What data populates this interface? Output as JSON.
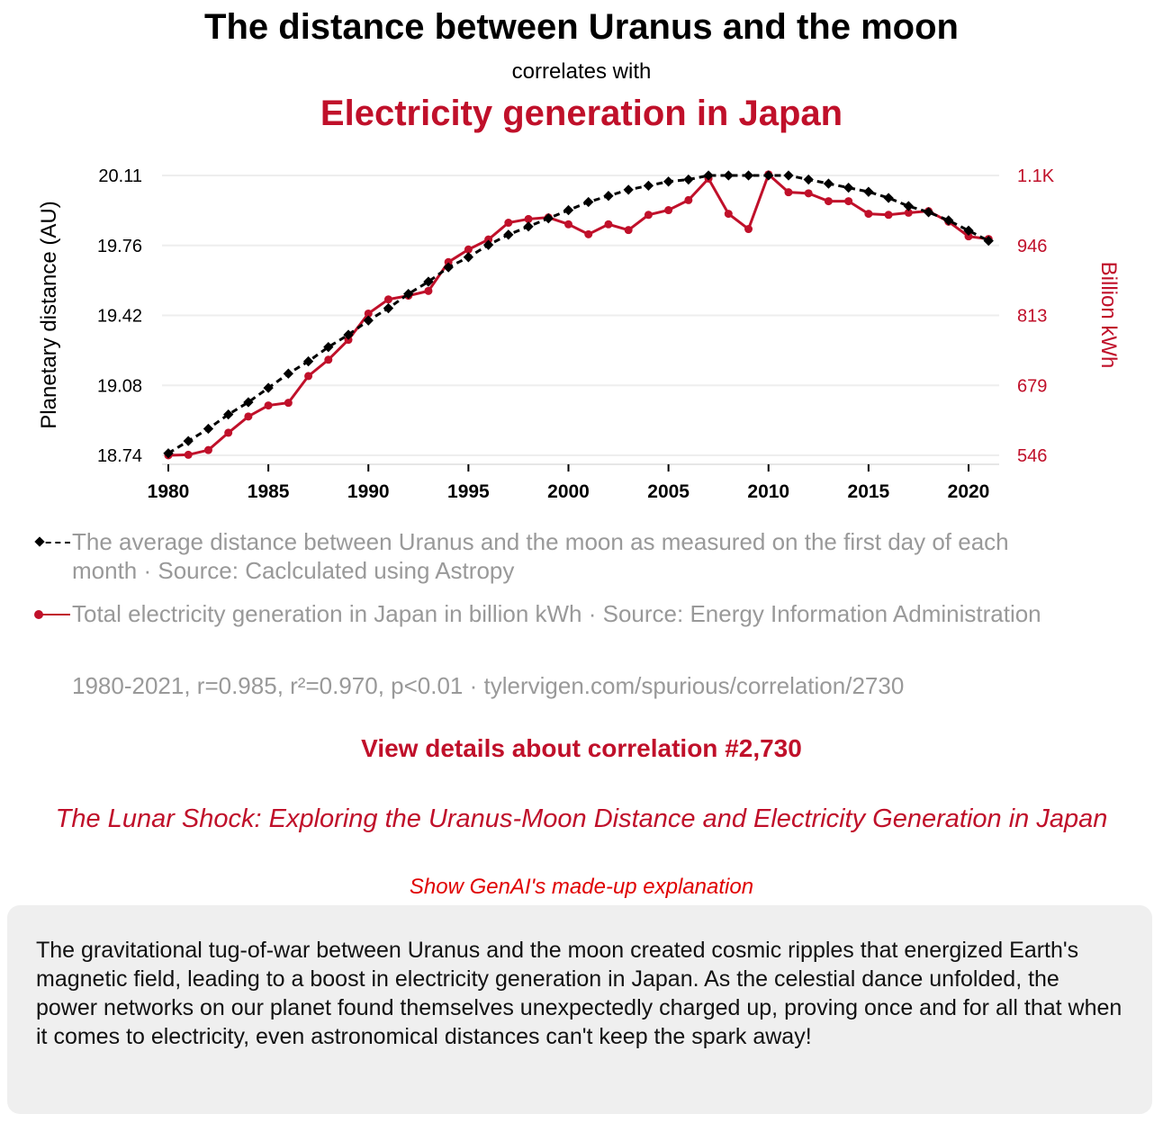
{
  "header": {
    "title": "The distance between Uranus and the moon",
    "connector": "correlates with",
    "subtitle": "Electricity generation in Japan"
  },
  "colors": {
    "series1": "#000000",
    "series2": "#c0102a",
    "grid": "#eeeeee",
    "legend_text": "#999999"
  },
  "chart_data": {
    "type": "line",
    "x": [
      1980,
      1981,
      1982,
      1983,
      1984,
      1985,
      1986,
      1987,
      1988,
      1989,
      1990,
      1991,
      1992,
      1993,
      1994,
      1995,
      1996,
      1997,
      1998,
      1999,
      2000,
      2001,
      2002,
      2003,
      2004,
      2005,
      2006,
      2007,
      2008,
      2009,
      2010,
      2011,
      2012,
      2013,
      2014,
      2015,
      2016,
      2017,
      2018,
      2019,
      2020,
      2021
    ],
    "xticks": [
      "1980",
      "1985",
      "1990",
      "1995",
      "2000",
      "2005",
      "2010",
      "2015",
      "2020"
    ],
    "series": [
      {
        "name": "The average distance between Uranus and the moon",
        "axis": "left",
        "style": "dashed-diamond",
        "values": [
          18.75,
          18.81,
          18.87,
          18.94,
          19.0,
          19.07,
          19.14,
          19.2,
          19.27,
          19.33,
          19.4,
          19.46,
          19.53,
          19.59,
          19.66,
          19.71,
          19.77,
          19.82,
          19.86,
          19.9,
          19.94,
          19.98,
          20.01,
          20.04,
          20.06,
          20.08,
          20.09,
          20.11,
          20.11,
          20.11,
          20.11,
          20.11,
          20.09,
          20.07,
          20.05,
          20.03,
          20.0,
          19.96,
          19.93,
          19.89,
          19.84,
          19.79
        ]
      },
      {
        "name": "Total electricity generation in Japan",
        "axis": "right",
        "style": "solid-circle",
        "values": [
          546,
          547,
          556,
          589,
          620,
          641,
          646,
          697,
          728,
          766,
          816,
          843,
          850,
          859,
          914,
          938,
          957,
          989,
          996,
          999,
          986,
          967,
          986,
          975,
          1004,
          1013,
          1032,
          1073,
          1006,
          977,
          1081,
          1047,
          1045,
          1030,
          1030,
          1006,
          1004,
          1008,
          1011,
          991,
          963,
          958
        ]
      }
    ],
    "left_axis": {
      "label": "Planetary distance (AU)",
      "ticks": [
        "18.74",
        "19.08",
        "19.42",
        "19.76",
        "20.11"
      ],
      "range": [
        18.74,
        20.11
      ]
    },
    "right_axis": {
      "label": "Billion kWh",
      "ticks": [
        "546",
        "679",
        "813",
        "946",
        "1.1K"
      ],
      "range": [
        546,
        1079
      ]
    },
    "grid": true
  },
  "legend": [
    {
      "text": "The average distance between Uranus and the moon as measured on the first day of each month · Source: Caclculated using Astropy"
    },
    {
      "text": "Total electricity generation in Japan in billion kWh · Source: Energy Information Administration"
    }
  ],
  "stats": "1980-2021, r=0.985, r²=0.970, p<0.01 · tylervigen.com/spurious/correlation/2730",
  "details_link": "View details about correlation #2,730",
  "paper_title": "The Lunar Shock: Exploring the Uranus-Moon Distance and Electricity Generation in Japan",
  "genai_link": "Show GenAI's made-up explanation",
  "explanation": "The gravitational tug-of-war between Uranus and the moon created cosmic ripples that energized Earth's magnetic field, leading to a boost in electricity generation in Japan. As the celestial dance unfolded, the power networks on our planet found themselves unexpectedly charged up, proving once and for all that when it comes to electricity, even astronomical distances can't keep the spark away!"
}
